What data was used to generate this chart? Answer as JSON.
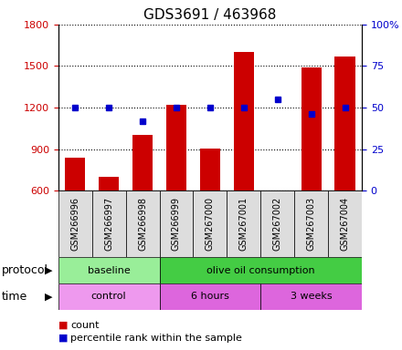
{
  "title": "GDS3691 / 463968",
  "samples": [
    "GSM266996",
    "GSM266997",
    "GSM266998",
    "GSM266999",
    "GSM267000",
    "GSM267001",
    "GSM267002",
    "GSM267003",
    "GSM267004"
  ],
  "count_values": [
    840,
    700,
    1000,
    1220,
    905,
    1600,
    600,
    1490,
    1570
  ],
  "percentile_values": [
    50,
    50,
    42,
    50,
    50,
    50,
    55,
    46,
    50
  ],
  "ylim_left": [
    600,
    1800
  ],
  "ylim_right": [
    0,
    100
  ],
  "yticks_left": [
    600,
    900,
    1200,
    1500,
    1800
  ],
  "yticks_right": [
    0,
    25,
    50,
    75,
    100
  ],
  "bar_color": "#cc0000",
  "square_color": "#0000cc",
  "protocol_groups": [
    {
      "label": "baseline",
      "start": 0,
      "end": 3,
      "color": "#99ee99"
    },
    {
      "label": "olive oil consumption",
      "start": 3,
      "end": 9,
      "color": "#44cc44"
    }
  ],
  "time_groups": [
    {
      "label": "control",
      "start": 0,
      "end": 3,
      "color": "#ee99ee"
    },
    {
      "label": "6 hours",
      "start": 3,
      "end": 6,
      "color": "#dd66dd"
    },
    {
      "label": "3 weeks",
      "start": 6,
      "end": 9,
      "color": "#dd66dd"
    }
  ],
  "legend_items": [
    {
      "label": "count",
      "color": "#cc0000"
    },
    {
      "label": "percentile rank within the sample",
      "color": "#0000cc"
    }
  ],
  "left_tick_color": "#cc0000",
  "right_tick_color": "#0000cc",
  "protocol_label": "protocol",
  "time_label": "time",
  "sample_cell_color": "#dddddd",
  "right_ytick_labels": [
    "0",
    "25",
    "50",
    "75",
    "100%"
  ]
}
